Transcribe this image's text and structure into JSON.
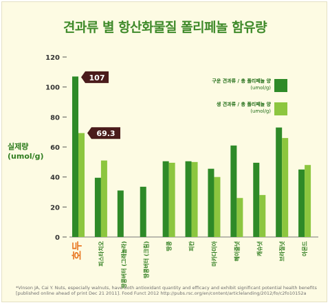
{
  "title": "견과류 별 항산화물질 폴리페놀 함유량",
  "source_note": "*Vinson JA, Cai Y. Nuts, especially walnuts, have both antioxidant quantity and efficacy and exhibit significant potential health benefits [published online ahead of print Dec 21 2011]. Food Funct 2012 http://pubs.rsc.org/en/content/articlelanding/2012/fo/c2fo10152a",
  "colors": {
    "roasted": "#2e8a28",
    "raw": "#8cc63f",
    "callout": "#4a1b1b",
    "title": "#3f8a2a",
    "highlight_label": "#e87722",
    "axis_text": "#2f7d1f"
  },
  "chart_data": {
    "type": "bar",
    "ylabel": "실제량\n(umol/g)",
    "yticks": [
      0,
      20,
      40,
      60,
      80,
      100,
      120
    ],
    "ylim": [
      0,
      120
    ],
    "grid": false,
    "legend_position": "right",
    "categories": [
      "호두",
      "피스타치오",
      "땅콩버터 (그래놀라)",
      "땅콩버터 (크림)",
      "땅콩",
      "피칸",
      "마카다미아",
      "헤이즐넛",
      "캐슈넛",
      "브라질넛",
      "아몬드"
    ],
    "series": [
      {
        "name": "구운 견과류 / 총 폴리페놀 양 (umol/g)",
        "color": "#2e8a28",
        "values": [
          107,
          39.5,
          31,
          33.5,
          50.5,
          50.5,
          45.5,
          61,
          49.5,
          73,
          45
        ]
      },
      {
        "name": "생 견과류 / 총 폴리페놀 양 (umol/g)",
        "color": "#8cc63f",
        "values": [
          69.3,
          51,
          null,
          null,
          49.5,
          50,
          40,
          26,
          28,
          66,
          48
        ]
      }
    ],
    "annotations": [
      {
        "category": "호두",
        "series": 0,
        "label": "107"
      },
      {
        "category": "호두",
        "series": 1,
        "label": "69.3"
      }
    ]
  }
}
